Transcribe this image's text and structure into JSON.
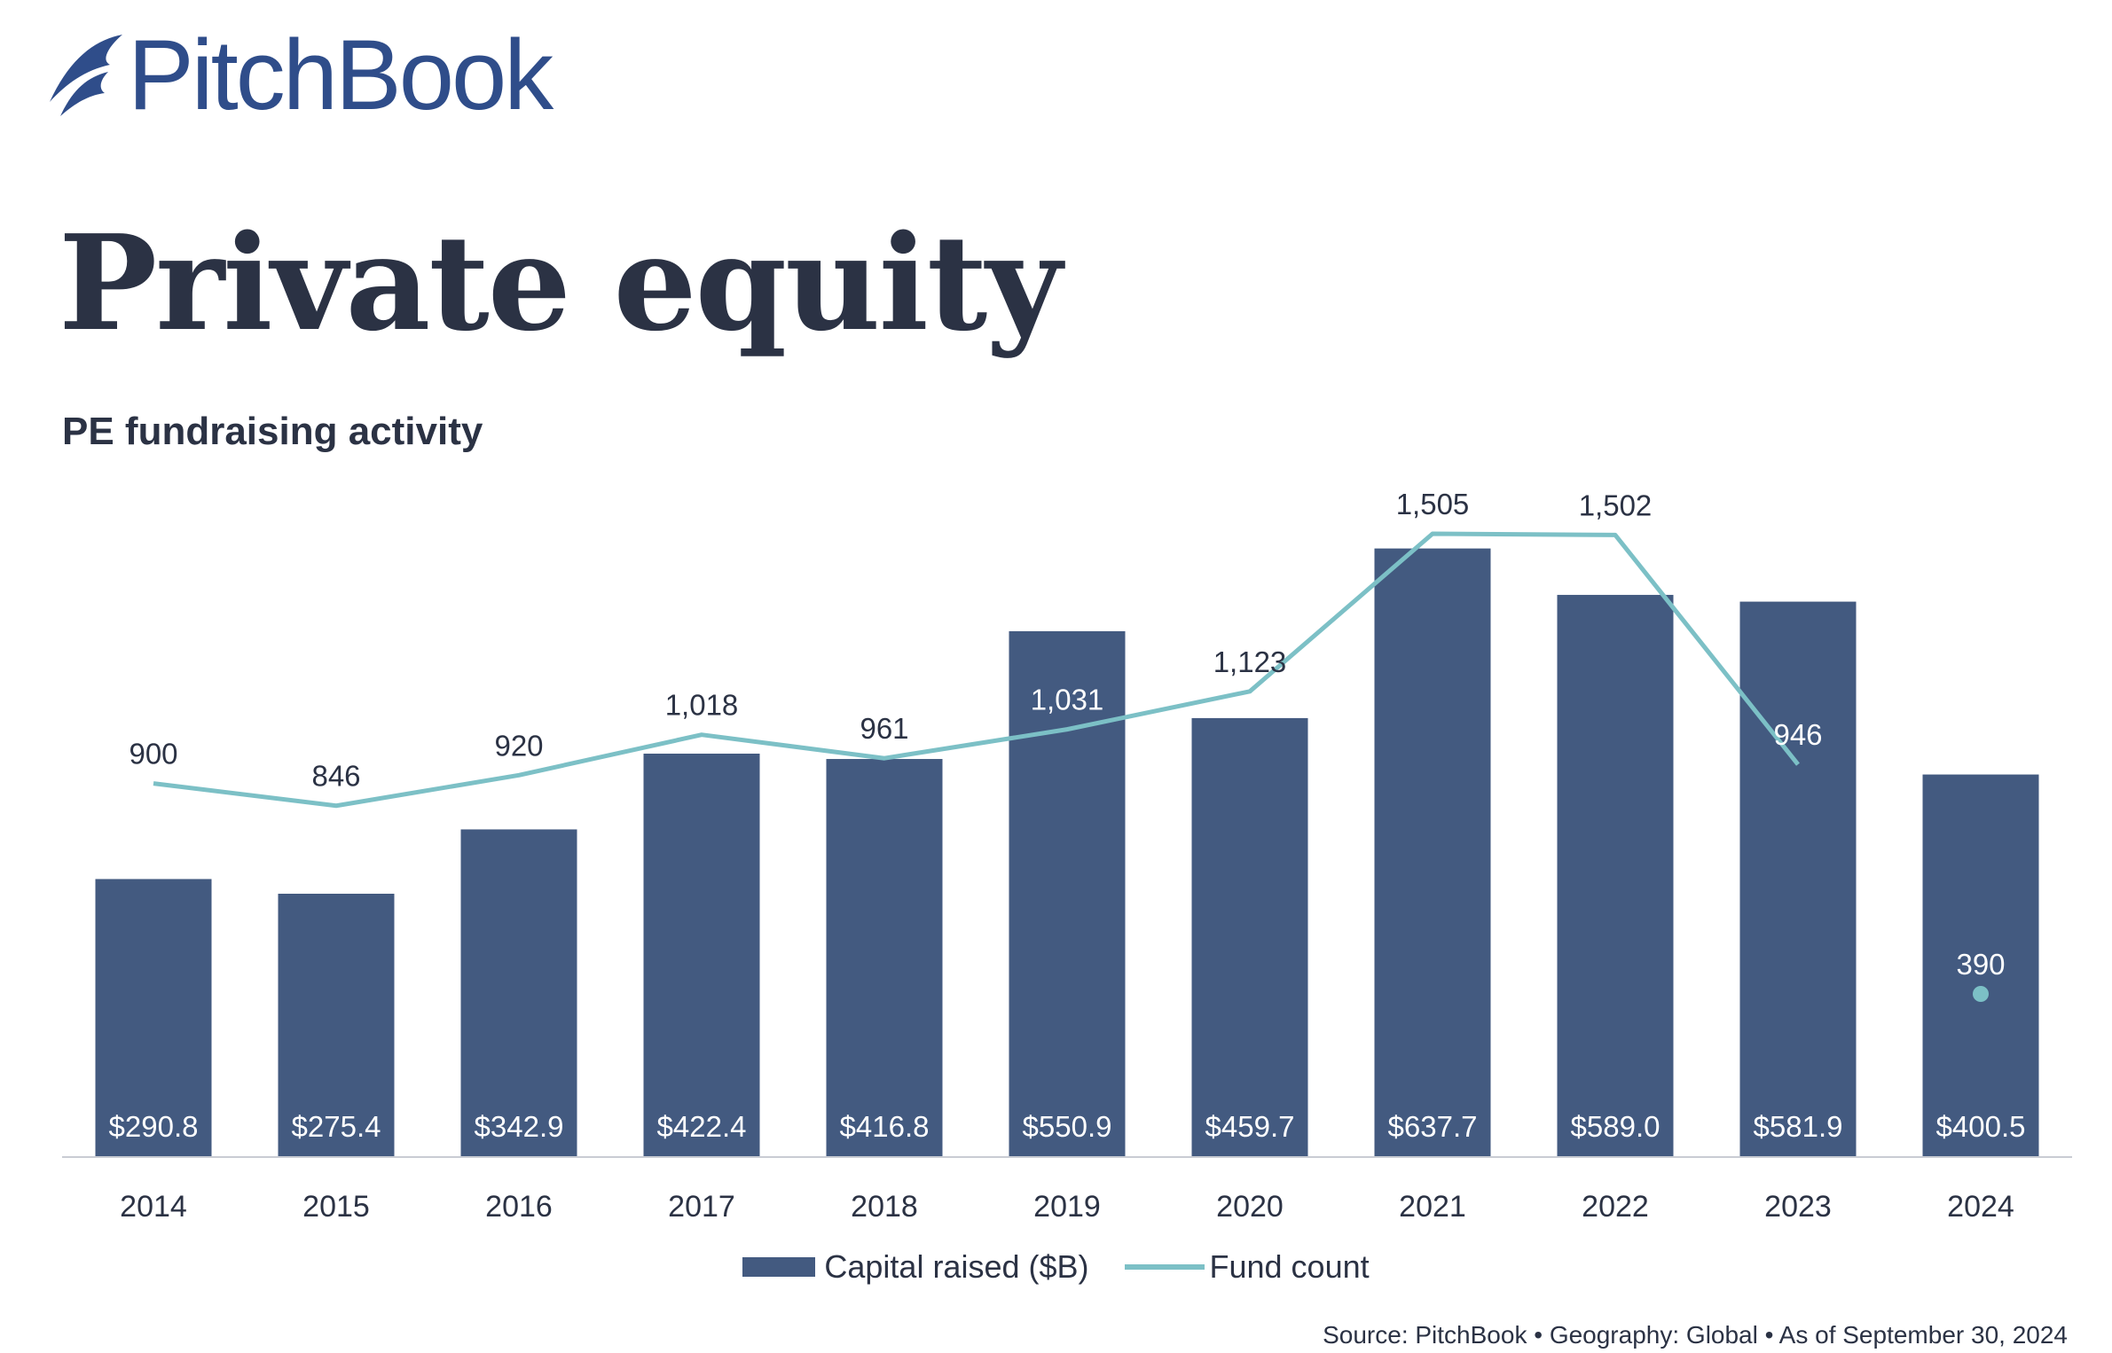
{
  "brand": {
    "name": "PitchBook",
    "color": "#2f4d8a"
  },
  "page_title": "Private equity",
  "footer": {
    "source": "Source: PitchBook  •  Geography: Global  •  As of September 30, 2024"
  },
  "chart_data": {
    "type": "bar",
    "title": "PE fundraising activity",
    "categories": [
      "2014",
      "2015",
      "2016",
      "2017",
      "2018",
      "2019",
      "2020",
      "2021",
      "2022",
      "2023",
      "2024"
    ],
    "series": [
      {
        "name": "Capital raised ($B)",
        "type": "bar",
        "color": "#435a80",
        "values": [
          290.8,
          275.4,
          342.9,
          422.4,
          416.8,
          550.9,
          459.7,
          637.7,
          589.0,
          581.9,
          400.5
        ],
        "labels": [
          "$290.8",
          "$275.4",
          "$342.9",
          "$422.4",
          "$416.8",
          "$550.9",
          "$459.7",
          "$637.7",
          "$589.0",
          "$581.9",
          "$400.5"
        ]
      },
      {
        "name": "Fund count",
        "type": "line",
        "color": "#7cc0c6",
        "values": [
          900,
          846,
          920,
          1018,
          961,
          1031,
          1123,
          1505,
          1502,
          946,
          390
        ],
        "labels": [
          "900",
          "846",
          "920",
          "1,018",
          "961",
          "1,031",
          "1,123",
          "1,505",
          "1,502",
          "946",
          "390"
        ],
        "line_segment_end_index": 9,
        "isolated_point_index": 10
      }
    ],
    "legend": {
      "position": "bottom-center",
      "items": [
        "Capital raised ($B)",
        "Fund count"
      ]
    },
    "xlabel": "",
    "ylabel": "",
    "grid": false
  }
}
